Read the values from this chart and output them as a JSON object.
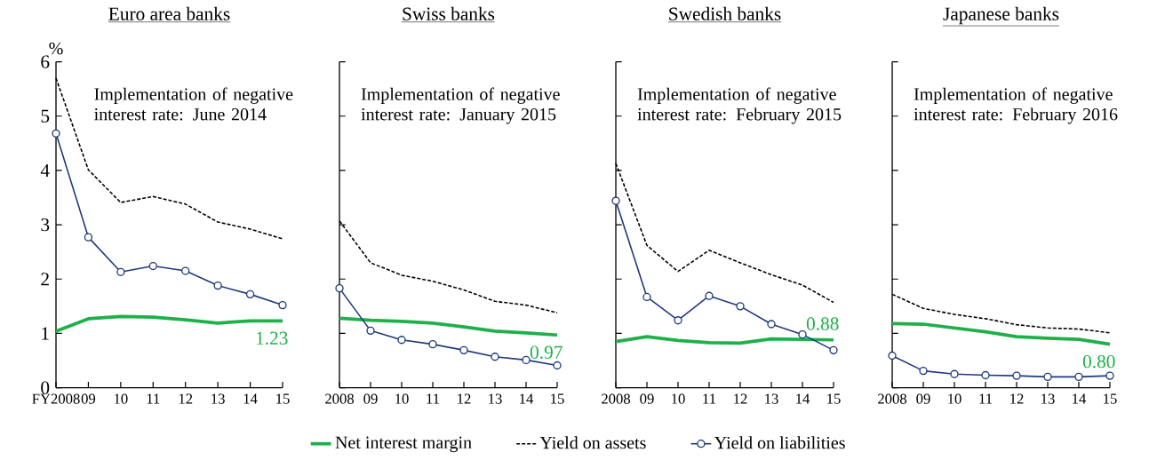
{
  "chart_data": [
    {
      "type": "line",
      "title": "Euro area banks",
      "ylabel": "%",
      "categories": [
        "FY2008",
        "09",
        "10",
        "11",
        "12",
        "13",
        "14",
        "15"
      ],
      "ylim": [
        0,
        6
      ],
      "yticks": [
        0,
        1,
        2,
        3,
        4,
        5,
        6
      ],
      "legend": "bottom",
      "annotations": [
        "Implementation of negative interest rate: June 2014"
      ],
      "series": [
        {
          "name": "Net interest margin",
          "color": "#1fb04a",
          "values": [
            1.04,
            1.27,
            1.31,
            1.3,
            1.25,
            1.19,
            1.23,
            1.23
          ],
          "value_labels": [
            null,
            null,
            null,
            null,
            null,
            null,
            null,
            "1.23"
          ],
          "marker": "none",
          "line_style": "solid"
        },
        {
          "name": "Yield on assets",
          "color": "#000000",
          "values": [
            5.7,
            4.01,
            3.41,
            3.52,
            3.38,
            3.05,
            2.92,
            2.74
          ],
          "marker": "none",
          "line_style": "dashed"
        },
        {
          "name": "Yield on liabilities",
          "color": "#1f3a7a",
          "values": [
            4.68,
            2.77,
            2.13,
            2.24,
            2.15,
            1.88,
            1.72,
            1.52
          ],
          "marker": "circle",
          "line_style": "solid"
        }
      ]
    },
    {
      "type": "line",
      "title": "Swiss banks",
      "categories": [
        "2008",
        "09",
        "10",
        "11",
        "12",
        "13",
        "14",
        "15"
      ],
      "ylim": [
        0,
        6
      ],
      "yticks": [
        0,
        1,
        2,
        3,
        4,
        5,
        6
      ],
      "tick_labels": "x",
      "annotations": [
        "Implementation of negative interest rate: January 2015"
      ],
      "series": [
        {
          "color": "#1fb04a",
          "values": [
            1.28,
            1.24,
            1.22,
            1.19,
            1.12,
            1.04,
            1.01,
            0.97
          ],
          "value_labels": [
            null,
            null,
            null,
            null,
            null,
            null,
            null,
            "0.97"
          ],
          "marker": "none",
          "line_style": "solid"
        },
        {
          "color": "#000000",
          "values": [
            3.07,
            2.3,
            2.07,
            1.96,
            1.8,
            1.59,
            1.52,
            1.38
          ],
          "marker": "none",
          "line_style": "dashed"
        },
        {
          "color": "#1f3a7a",
          "values": [
            1.83,
            1.05,
            0.88,
            0.8,
            0.69,
            0.57,
            0.51,
            0.41
          ],
          "marker": "circle",
          "line_style": "solid"
        }
      ]
    },
    {
      "type": "line",
      "title": "Swedish banks",
      "categories": [
        "2008",
        "09",
        "10",
        "11",
        "12",
        "13",
        "14",
        "15"
      ],
      "ylim": [
        0,
        6
      ],
      "yticks": [
        0,
        1,
        2,
        3,
        4,
        5,
        6
      ],
      "tick_labels": "x",
      "annotations": [
        "Implementation of negative interest rate: February 2015"
      ],
      "series": [
        {
          "color": "#1fb04a",
          "values": [
            0.85,
            0.94,
            0.87,
            0.83,
            0.82,
            0.9,
            0.89,
            0.88
          ],
          "value_labels": [
            null,
            null,
            null,
            null,
            null,
            null,
            null,
            "0.88"
          ],
          "marker": "none",
          "line_style": "solid"
        },
        {
          "color": "#000000",
          "values": [
            4.13,
            2.62,
            2.14,
            2.53,
            2.3,
            2.08,
            1.89,
            1.57
          ],
          "marker": "none",
          "line_style": "dashed"
        },
        {
          "color": "#1f3a7a",
          "values": [
            3.44,
            1.67,
            1.24,
            1.69,
            1.5,
            1.17,
            0.98,
            0.69
          ],
          "marker": "circle",
          "line_style": "solid"
        }
      ]
    },
    {
      "type": "line",
      "title": "Japanese banks",
      "categories": [
        "2008",
        "09",
        "10",
        "11",
        "12",
        "13",
        "14",
        "15"
      ],
      "ylim": [
        0,
        6
      ],
      "yticks": [
        0,
        1,
        2,
        3,
        4,
        5,
        6
      ],
      "tick_labels": "x",
      "annotations": [
        "Implementation of negative interest rate: February 2016"
      ],
      "series": [
        {
          "color": "#1fb04a",
          "values": [
            1.18,
            1.17,
            1.1,
            1.03,
            0.94,
            0.91,
            0.89,
            0.8
          ],
          "value_labels": [
            null,
            null,
            null,
            null,
            null,
            null,
            null,
            "0.80"
          ],
          "marker": "none",
          "line_style": "solid"
        },
        {
          "color": "#000000",
          "values": [
            1.72,
            1.46,
            1.35,
            1.27,
            1.16,
            1.1,
            1.08,
            1.01
          ],
          "marker": "none",
          "line_style": "dashed"
        },
        {
          "color": "#1f3a7a",
          "values": [
            0.59,
            0.31,
            0.25,
            0.23,
            0.22,
            0.2,
            0.2,
            0.22
          ],
          "marker": "circle",
          "line_style": "solid"
        }
      ]
    }
  ]
}
